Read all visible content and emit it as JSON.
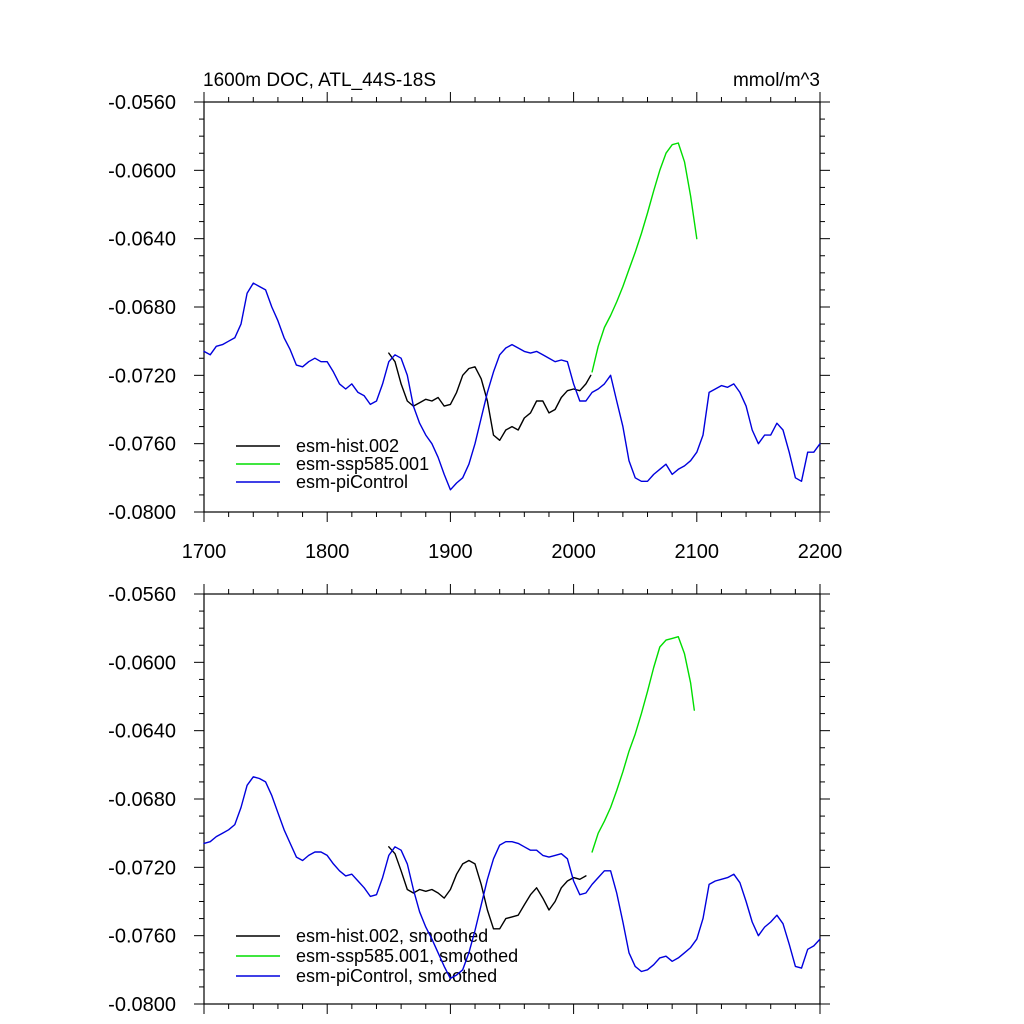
{
  "chart_data": [
    {
      "type": "line",
      "title": "1600m DOC, ATL_44S-18S",
      "units": "mmol/m^3",
      "xlim": [
        1700,
        2200
      ],
      "ylim": [
        -0.08,
        -0.056
      ],
      "xticks": [
        1700,
        1800,
        1900,
        2000,
        2100,
        2200
      ],
      "xtick_labels": [
        "1700",
        "1800",
        "1900",
        "2000",
        "2100",
        "2200"
      ],
      "yticks": [
        -0.056,
        -0.06,
        -0.064,
        -0.068,
        -0.072,
        -0.076,
        -0.08
      ],
      "ytick_labels": [
        "-0.0560",
        "-0.0600",
        "-0.0640",
        "-0.0680",
        "-0.0720",
        "-0.0760",
        "-0.0800"
      ],
      "legend_position": "bottom-left",
      "series": [
        {
          "name": "esm-hist.002",
          "color": "#000000",
          "x": [
            1850,
            1855,
            1860,
            1865,
            1870,
            1875,
            1880,
            1885,
            1890,
            1895,
            1900,
            1905,
            1910,
            1915,
            1920,
            1925,
            1930,
            1935,
            1940,
            1945,
            1950,
            1955,
            1960,
            1965,
            1970,
            1975,
            1980,
            1985,
            1990,
            1995,
            2000,
            2005,
            2010,
            2014
          ],
          "y": [
            -0.0707,
            -0.0712,
            -0.0725,
            -0.0735,
            -0.0738,
            -0.0736,
            -0.0734,
            -0.0735,
            -0.0733,
            -0.0738,
            -0.0737,
            -0.073,
            -0.072,
            -0.0716,
            -0.0715,
            -0.0722,
            -0.0735,
            -0.0755,
            -0.0758,
            -0.0752,
            -0.075,
            -0.0752,
            -0.0745,
            -0.0742,
            -0.0735,
            -0.0735,
            -0.0742,
            -0.074,
            -0.0733,
            -0.0729,
            -0.0728,
            -0.0729,
            -0.0725,
            -0.072
          ]
        },
        {
          "name": "esm-ssp585.001",
          "color": "#00dd00",
          "x": [
            2015,
            2020,
            2025,
            2030,
            2035,
            2040,
            2045,
            2050,
            2055,
            2060,
            2065,
            2070,
            2075,
            2080,
            2085,
            2090,
            2095,
            2100
          ],
          "y": [
            -0.0718,
            -0.0703,
            -0.0692,
            -0.0685,
            -0.0677,
            -0.0668,
            -0.0658,
            -0.0648,
            -0.0637,
            -0.0625,
            -0.0612,
            -0.06,
            -0.059,
            -0.0585,
            -0.0584,
            -0.0595,
            -0.0615,
            -0.064
          ]
        },
        {
          "name": "esm-piControl",
          "color": "#0000dd",
          "x": [
            1700,
            1705,
            1710,
            1715,
            1720,
            1725,
            1730,
            1735,
            1740,
            1745,
            1750,
            1755,
            1760,
            1765,
            1770,
            1775,
            1780,
            1785,
            1790,
            1795,
            1800,
            1805,
            1810,
            1815,
            1820,
            1825,
            1830,
            1835,
            1840,
            1845,
            1850,
            1855,
            1860,
            1865,
            1870,
            1875,
            1880,
            1885,
            1890,
            1895,
            1900,
            1905,
            1910,
            1915,
            1920,
            1925,
            1930,
            1935,
            1940,
            1945,
            1950,
            1955,
            1960,
            1965,
            1970,
            1975,
            1980,
            1985,
            1990,
            1995,
            2000,
            2005,
            2010,
            2015,
            2020,
            2025,
            2030,
            2035,
            2040,
            2045,
            2050,
            2055,
            2060,
            2065,
            2070,
            2075,
            2080,
            2085,
            2090,
            2095,
            2100,
            2105,
            2110,
            2115,
            2120,
            2125,
            2130,
            2135,
            2140,
            2145,
            2150,
            2155,
            2160,
            2165,
            2170,
            2175,
            2180,
            2185,
            2190,
            2195,
            2200
          ],
          "y": [
            -0.0706,
            -0.0708,
            -0.0703,
            -0.0702,
            -0.07,
            -0.0698,
            -0.069,
            -0.0672,
            -0.0666,
            -0.0668,
            -0.067,
            -0.068,
            -0.0688,
            -0.0698,
            -0.0705,
            -0.0714,
            -0.0715,
            -0.0712,
            -0.071,
            -0.0712,
            -0.0712,
            -0.0718,
            -0.0725,
            -0.0728,
            -0.0725,
            -0.073,
            -0.0732,
            -0.0737,
            -0.0735,
            -0.0725,
            -0.0712,
            -0.0708,
            -0.071,
            -0.072,
            -0.0738,
            -0.0748,
            -0.0755,
            -0.076,
            -0.0768,
            -0.0778,
            -0.0787,
            -0.0783,
            -0.078,
            -0.0772,
            -0.076,
            -0.0745,
            -0.073,
            -0.0718,
            -0.0708,
            -0.0704,
            -0.0702,
            -0.0704,
            -0.0706,
            -0.0707,
            -0.0706,
            -0.0708,
            -0.071,
            -0.0712,
            -0.0711,
            -0.0712,
            -0.0725,
            -0.0735,
            -0.0735,
            -0.073,
            -0.0728,
            -0.0725,
            -0.072,
            -0.0735,
            -0.075,
            -0.077,
            -0.078,
            -0.0782,
            -0.0782,
            -0.0778,
            -0.0775,
            -0.0772,
            -0.0778,
            -0.0775,
            -0.0773,
            -0.077,
            -0.0765,
            -0.0755,
            -0.073,
            -0.0728,
            -0.0726,
            -0.0727,
            -0.0725,
            -0.073,
            -0.0738,
            -0.0752,
            -0.076,
            -0.0755,
            -0.0755,
            -0.0748,
            -0.0752,
            -0.0765,
            -0.078,
            -0.0782,
            -0.0765,
            -0.0765,
            -0.076
          ]
        }
      ]
    },
    {
      "type": "line",
      "xlim": [
        1700,
        2200
      ],
      "ylim": [
        -0.08,
        -0.056
      ],
      "xticks": [
        1700,
        1800,
        1900,
        2000,
        2100,
        2200
      ],
      "yticks": [
        -0.056,
        -0.06,
        -0.064,
        -0.068,
        -0.072,
        -0.076,
        -0.08
      ],
      "ytick_labels": [
        "-0.0560",
        "-0.0600",
        "-0.0640",
        "-0.0680",
        "-0.0720",
        "-0.0760",
        "-0.0800"
      ],
      "legend_position": "bottom-left",
      "series": [
        {
          "name": "esm-hist.002, smoothed",
          "color": "#000000",
          "x": [
            1850,
            1855,
            1860,
            1865,
            1870,
            1875,
            1880,
            1885,
            1890,
            1895,
            1900,
            1905,
            1910,
            1915,
            1920,
            1925,
            1930,
            1935,
            1940,
            1945,
            1950,
            1955,
            1960,
            1965,
            1970,
            1975,
            1980,
            1985,
            1990,
            1995,
            2000,
            2005,
            2010
          ],
          "y": [
            -0.0708,
            -0.0712,
            -0.0722,
            -0.0733,
            -0.0735,
            -0.0733,
            -0.0734,
            -0.0733,
            -0.0735,
            -0.0738,
            -0.0733,
            -0.0724,
            -0.0718,
            -0.0716,
            -0.0718,
            -0.073,
            -0.0745,
            -0.0756,
            -0.0756,
            -0.075,
            -0.0749,
            -0.0748,
            -0.0742,
            -0.0736,
            -0.0732,
            -0.0738,
            -0.0745,
            -0.074,
            -0.0732,
            -0.0728,
            -0.0726,
            -0.0727,
            -0.0725
          ]
        },
        {
          "name": "esm-ssp585.001, smoothed",
          "color": "#00dd00",
          "x": [
            2015,
            2020,
            2025,
            2030,
            2035,
            2040,
            2045,
            2050,
            2055,
            2060,
            2065,
            2070,
            2075,
            2080,
            2085,
            2090,
            2095,
            2098
          ],
          "y": [
            -0.0711,
            -0.07,
            -0.0693,
            -0.0685,
            -0.0675,
            -0.0664,
            -0.0652,
            -0.0642,
            -0.063,
            -0.0617,
            -0.0603,
            -0.0591,
            -0.0587,
            -0.0586,
            -0.0585,
            -0.0595,
            -0.0612,
            -0.0628
          ]
        },
        {
          "name": "esm-piControl, smoothed",
          "color": "#0000dd",
          "x": [
            1700,
            1705,
            1710,
            1715,
            1720,
            1725,
            1730,
            1735,
            1740,
            1745,
            1750,
            1755,
            1760,
            1765,
            1770,
            1775,
            1780,
            1785,
            1790,
            1795,
            1800,
            1805,
            1810,
            1815,
            1820,
            1825,
            1830,
            1835,
            1840,
            1845,
            1850,
            1855,
            1860,
            1865,
            1870,
            1875,
            1880,
            1885,
            1890,
            1895,
            1900,
            1905,
            1910,
            1915,
            1920,
            1925,
            1930,
            1935,
            1940,
            1945,
            1950,
            1955,
            1960,
            1965,
            1970,
            1975,
            1980,
            1985,
            1990,
            1995,
            2000,
            2005,
            2010,
            2015,
            2020,
            2025,
            2030,
            2035,
            2040,
            2045,
            2050,
            2055,
            2060,
            2065,
            2070,
            2075,
            2080,
            2085,
            2090,
            2095,
            2100,
            2105,
            2110,
            2115,
            2120,
            2125,
            2130,
            2135,
            2140,
            2145,
            2150,
            2155,
            2160,
            2165,
            2170,
            2175,
            2180,
            2185,
            2190,
            2195,
            2200
          ],
          "y": [
            -0.0706,
            -0.0705,
            -0.0702,
            -0.07,
            -0.0698,
            -0.0695,
            -0.0685,
            -0.0672,
            -0.0667,
            -0.0668,
            -0.067,
            -0.0678,
            -0.0688,
            -0.0698,
            -0.0706,
            -0.0714,
            -0.0716,
            -0.0713,
            -0.0711,
            -0.0711,
            -0.0713,
            -0.0718,
            -0.0722,
            -0.0725,
            -0.0724,
            -0.0728,
            -0.0732,
            -0.0737,
            -0.0736,
            -0.0726,
            -0.0713,
            -0.0708,
            -0.071,
            -0.0718,
            -0.0733,
            -0.0746,
            -0.0755,
            -0.0762,
            -0.077,
            -0.0778,
            -0.0785,
            -0.0783,
            -0.078,
            -0.077,
            -0.0757,
            -0.0742,
            -0.0727,
            -0.0715,
            -0.0707,
            -0.0705,
            -0.0705,
            -0.0706,
            -0.0708,
            -0.071,
            -0.071,
            -0.0713,
            -0.0714,
            -0.0713,
            -0.0712,
            -0.0715,
            -0.0728,
            -0.0736,
            -0.0735,
            -0.073,
            -0.0726,
            -0.0722,
            -0.0722,
            -0.0735,
            -0.0752,
            -0.077,
            -0.0778,
            -0.0781,
            -0.078,
            -0.0777,
            -0.0773,
            -0.0772,
            -0.0775,
            -0.0773,
            -0.077,
            -0.0767,
            -0.0762,
            -0.075,
            -0.073,
            -0.0728,
            -0.0727,
            -0.0726,
            -0.0724,
            -0.0729,
            -0.074,
            -0.0752,
            -0.076,
            -0.0755,
            -0.0752,
            -0.0748,
            -0.0753,
            -0.0765,
            -0.0778,
            -0.0779,
            -0.0768,
            -0.0766,
            -0.0762
          ]
        }
      ]
    }
  ]
}
